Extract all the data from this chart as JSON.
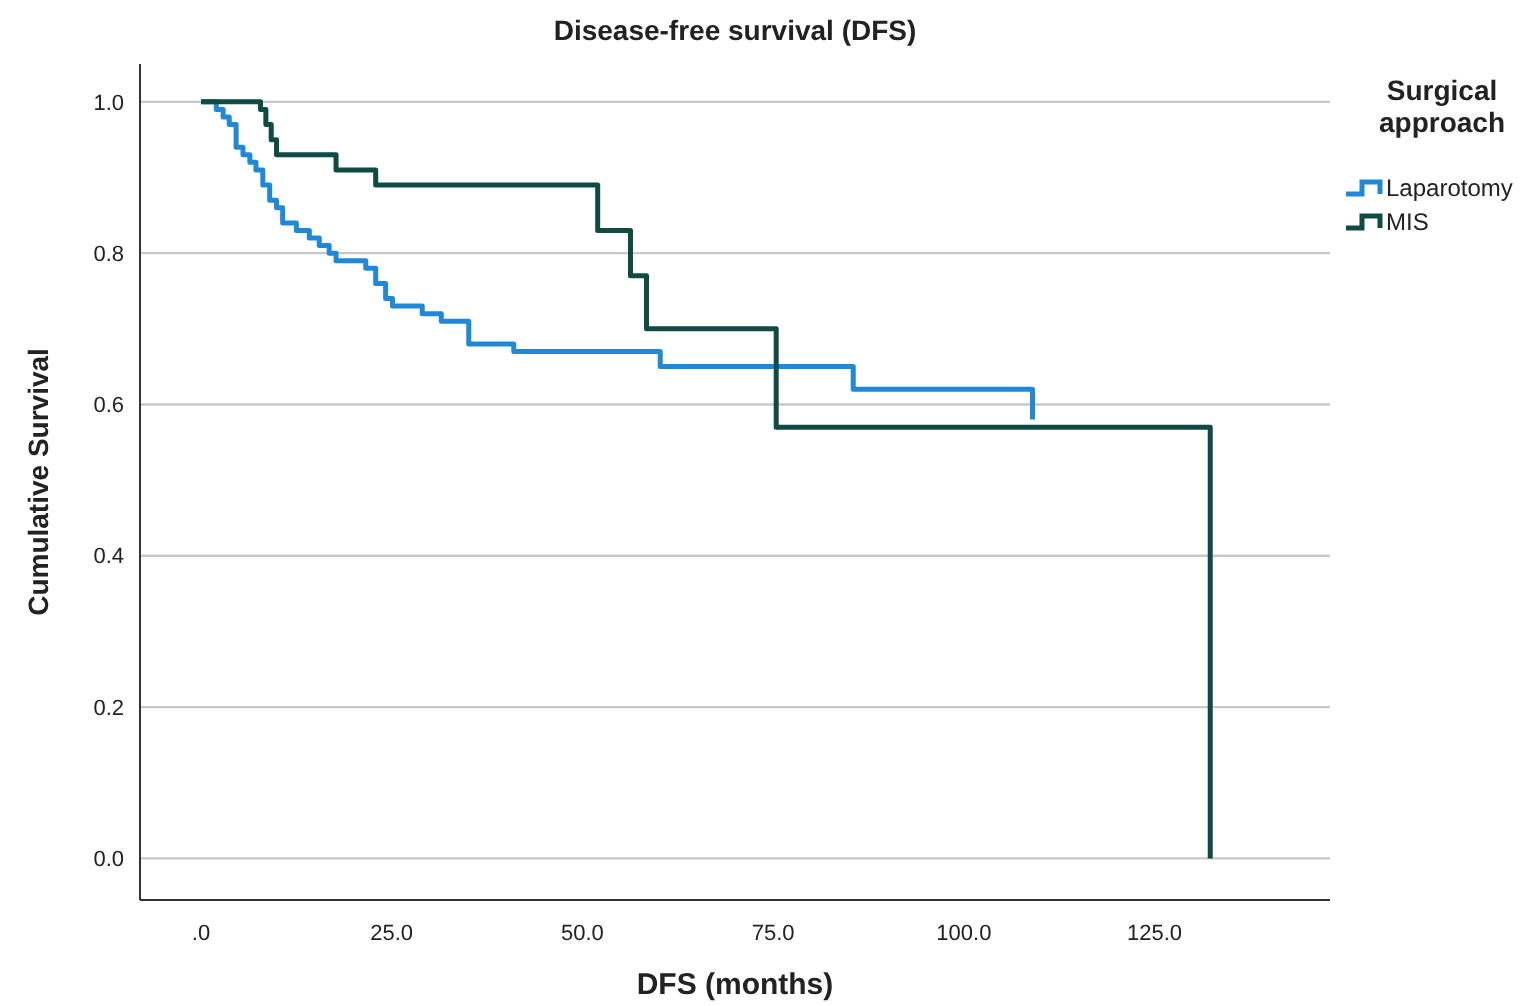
{
  "chart_data": {
    "type": "step",
    "title": "Disease-free survival (DFS)",
    "xlabel": "DFS (months)",
    "ylabel": "Cumulative Survival",
    "legend_title": "Surgical approach",
    "xlim": [
      -8,
      148
    ],
    "ylim": [
      -0.055,
      1.05
    ],
    "xticks": [
      {
        "value": 0,
        "label": ".0"
      },
      {
        "value": 25,
        "label": "25.0"
      },
      {
        "value": 50,
        "label": "50.0"
      },
      {
        "value": 75,
        "label": "75.0"
      },
      {
        "value": 100,
        "label": "100.0"
      },
      {
        "value": 125,
        "label": "125.0"
      }
    ],
    "yticks": [
      {
        "value": 0,
        "label": "0.0"
      },
      {
        "value": 0.2,
        "label": "0.2"
      },
      {
        "value": 0.4,
        "label": "0.4"
      },
      {
        "value": 0.6,
        "label": "0.6"
      },
      {
        "value": 0.8,
        "label": "0.8"
      },
      {
        "value": 1,
        "label": "1.0"
      }
    ],
    "grid": "y",
    "legend": "top right",
    "line_style": "solid",
    "series": [
      {
        "name": "Laparotomy",
        "color": "#1f88d8",
        "x": [
          0,
          2.0,
          2.9,
          3.7,
          4.6,
          5.5,
          6.4,
          7.2,
          8.1,
          9.0,
          9.9,
          10.7,
          11.6,
          12.5,
          14.2,
          15.5,
          16.8,
          17.7,
          21.6,
          22.9,
          24.2,
          25.1,
          29.0,
          31.5,
          35.1,
          41.0,
          60.2,
          85.5,
          109
        ],
        "values": [
          1.0,
          0.99,
          0.98,
          0.97,
          0.94,
          0.93,
          0.92,
          0.91,
          0.89,
          0.87,
          0.86,
          0.84,
          0.84,
          0.83,
          0.82,
          0.81,
          0.8,
          0.79,
          0.78,
          0.76,
          0.74,
          0.73,
          0.72,
          0.71,
          0.68,
          0.67,
          0.65,
          0.62,
          0.58
        ]
      },
      {
        "name": "MIS",
        "color": "#0f4a44",
        "x": [
          0,
          7.8,
          8.5,
          9.2,
          9.9,
          17.7,
          22.9,
          52.0,
          56.3,
          58.4,
          75.4,
          132.3
        ],
        "values": [
          1.0,
          0.99,
          0.97,
          0.95,
          0.93,
          0.91,
          0.89,
          0.83,
          0.77,
          0.7,
          0.57,
          0
        ]
      }
    ]
  }
}
